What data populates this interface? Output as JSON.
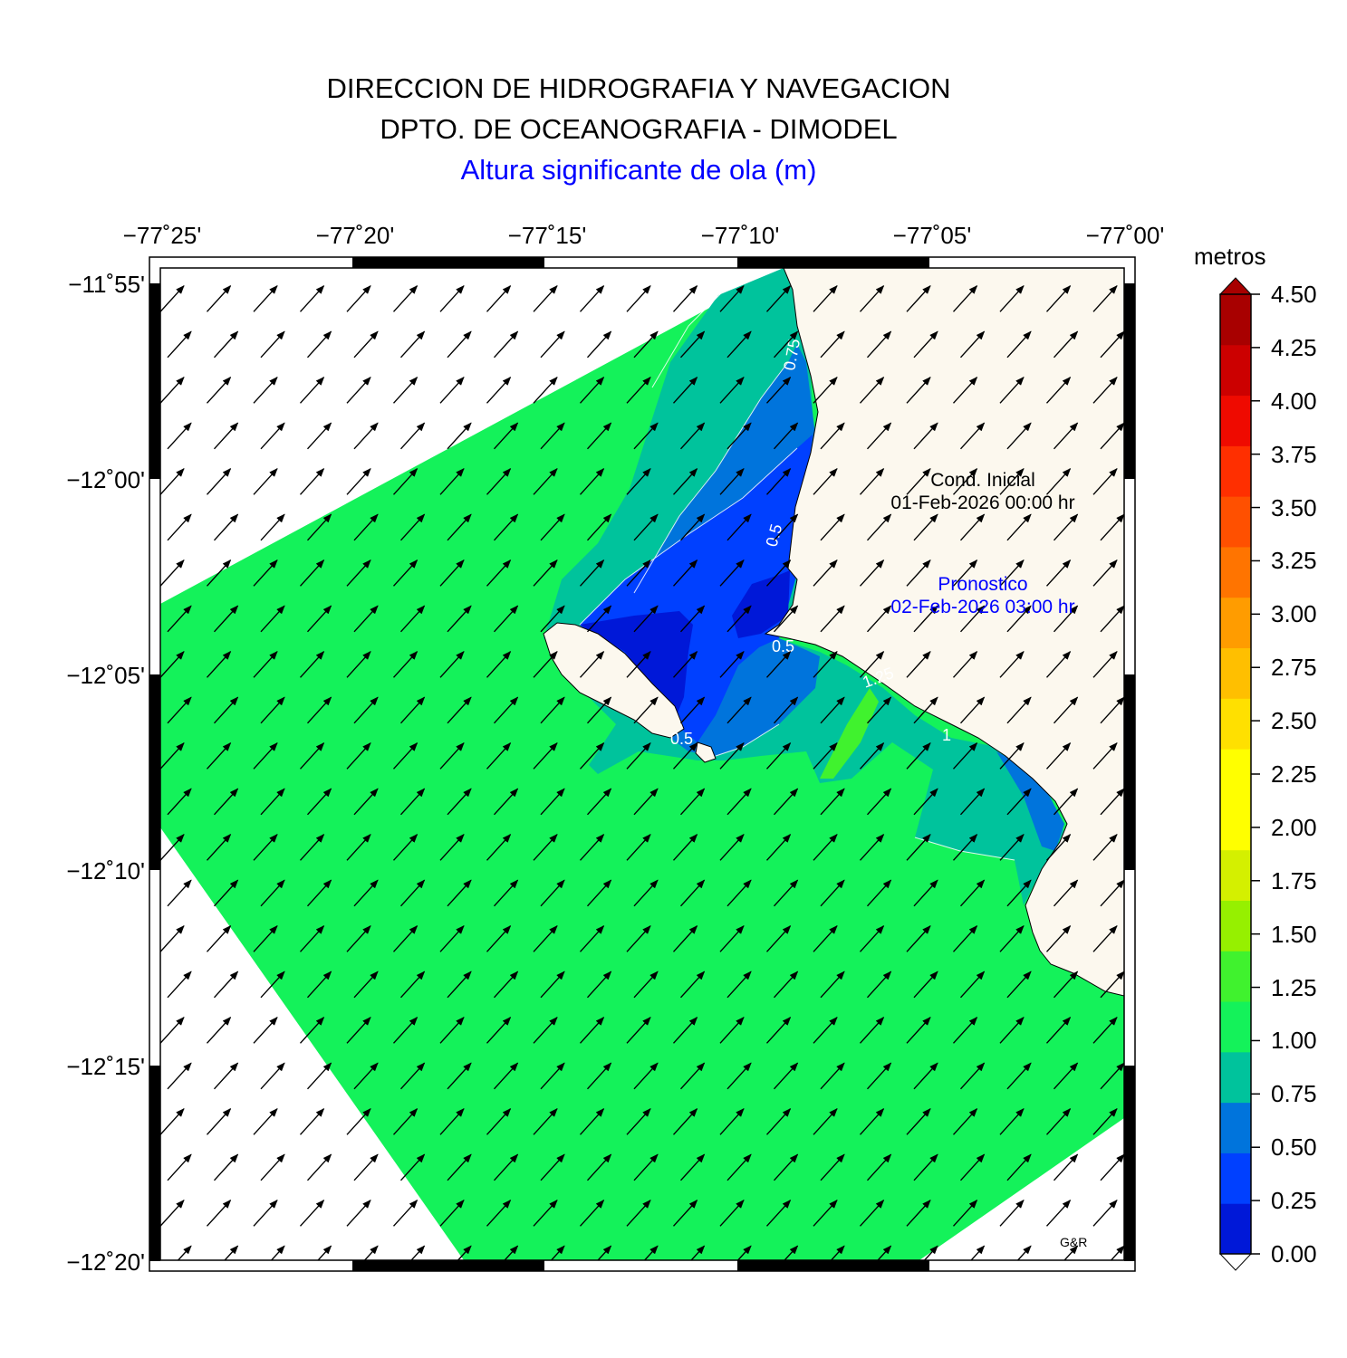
{
  "header": {
    "line1": "DIRECCION DE HIDROGRAFIA Y NAVEGACION",
    "line2": "DPTO. DE OCEANOGRAFIA - DIMODEL",
    "line3": "Altura significante de ola (m)"
  },
  "axes": {
    "lon_labels": [
      "−77˚25'",
      "−77˚20'",
      "−77˚15'",
      "−77˚10'",
      "−77˚05'",
      "−77˚00'"
    ],
    "lat_labels": [
      "−11˚55'",
      "−12˚00'",
      "−12˚05'",
      "−12˚10'",
      "−12˚15'",
      "−12˚20'"
    ],
    "lon_range": [
      -77.4167,
      -77.0
    ],
    "lat_range": [
      -12.3333,
      -11.9167
    ]
  },
  "annotations": {
    "initial_label": "Cond. Inicial",
    "initial_date": "01-Feb-2026 00:00 hr",
    "forecast_label": "Pronostico",
    "forecast_date": "02-Feb-2026 03:00 hr",
    "credit": "G&R"
  },
  "contour_labels": [
    "0.75",
    "0.5",
    "0.5",
    "0.5",
    "1.25",
    "1"
  ],
  "colorbar": {
    "unit": "metros",
    "tick_labels": [
      "4.50",
      "4.25",
      "4.00",
      "3.75",
      "3.50",
      "3.25",
      "3.00",
      "2.75",
      "2.50",
      "2.25",
      "2.00",
      "1.75",
      "1.50",
      "1.25",
      "1.00",
      "0.75",
      "0.50",
      "0.25",
      "0.00"
    ],
    "colors_bottom_to_top": [
      "#0018d8",
      "#0040ff",
      "#0074dc",
      "#00c39c",
      "#14f25a",
      "#40f22e",
      "#96f000",
      "#d4f000",
      "#ffff00",
      "#ffff00",
      "#ffe000",
      "#ffbf00",
      "#ff9c00",
      "#ff7400",
      "#ff5000",
      "#ff2f00",
      "#ef0a00",
      "#cc0000",
      "#a80000"
    ]
  },
  "colors": {
    "land": "#fcf8ee",
    "water_default": "#14f25a",
    "title_blue": "#0000ff"
  },
  "wave_direction_note": "arrows point toward NE"
}
